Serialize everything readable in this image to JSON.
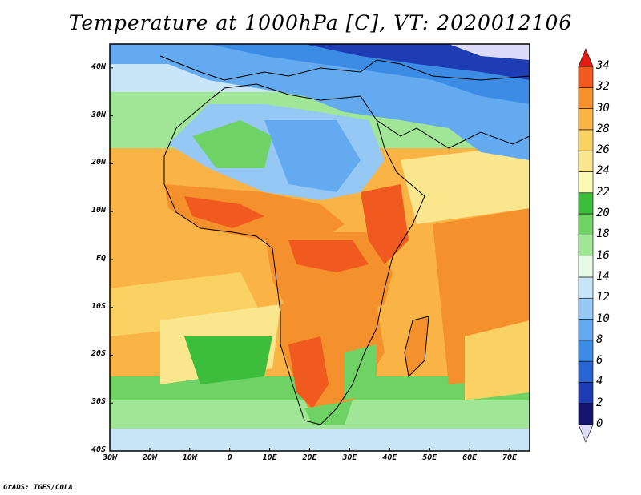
{
  "title": "Temperature at 1000hPa [C], VT: 2020012106",
  "credit": "GrADS: IGES/COLA",
  "map": {
    "lon_range": [
      -30,
      75
    ],
    "lat_range": [
      -40,
      45
    ],
    "y_ticks": [
      {
        "lat": 40,
        "label": "40N"
      },
      {
        "lat": 30,
        "label": "30N"
      },
      {
        "lat": 20,
        "label": "20N"
      },
      {
        "lat": 10,
        "label": "10N"
      },
      {
        "lat": 0,
        "label": "EQ"
      },
      {
        "lat": -10,
        "label": "10S"
      },
      {
        "lat": -20,
        "label": "20S"
      },
      {
        "lat": -30,
        "label": "30S"
      },
      {
        "lat": -40,
        "label": "40S"
      }
    ],
    "x_ticks": [
      {
        "lon": -30,
        "label": "30W"
      },
      {
        "lon": -20,
        "label": "20W"
      },
      {
        "lon": -10,
        "label": "10W"
      },
      {
        "lon": 0,
        "label": "0"
      },
      {
        "lon": 10,
        "label": "10E"
      },
      {
        "lon": 20,
        "label": "20E"
      },
      {
        "lon": 30,
        "label": "30E"
      },
      {
        "lon": 40,
        "label": "40E"
      },
      {
        "lon": 50,
        "label": "50E"
      },
      {
        "lon": 60,
        "label": "60E"
      },
      {
        "lon": 70,
        "label": "70E"
      }
    ]
  },
  "colorbar": {
    "levels": [
      "0",
      "2",
      "4",
      "6",
      "8",
      "10",
      "12",
      "14",
      "16",
      "18",
      "20",
      "22",
      "24",
      "26",
      "28",
      "30",
      "32",
      "34"
    ],
    "colors": [
      "#14146e",
      "#1e3cb4",
      "#2864d2",
      "#3c8ce6",
      "#64aaf0",
      "#96c8f5",
      "#c8e6f8",
      "#e6fae6",
      "#a0e696",
      "#6ed264",
      "#3cbe3c",
      "#fafab4",
      "#fae68c",
      "#fad264",
      "#fab446",
      "#f5912d",
      "#f05a1e"
    ],
    "under_color": "#dcdcfa",
    "over_color": "#e11e14"
  }
}
